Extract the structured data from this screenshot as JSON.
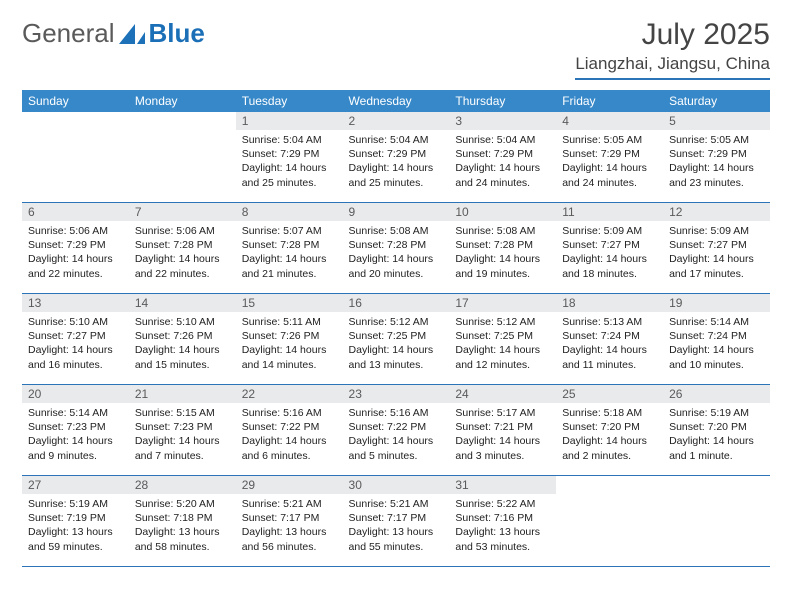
{
  "brand": {
    "general": "General",
    "blue": "Blue"
  },
  "title": "July 2025",
  "location": "Liangzhai, Jiangsu, China",
  "colors": {
    "header_bg": "#3688c9",
    "header_text": "#ffffff",
    "daynum_bg": "#e9eaec",
    "divider": "#2b74b8",
    "logo_gray": "#5a5a5a",
    "logo_blue": "#1b6fb7"
  },
  "typography": {
    "title_fontsize": 30,
    "location_fontsize": 17,
    "dayheader_fontsize": 12,
    "body_fontsize": 10.5
  },
  "day_headers": [
    "Sunday",
    "Monday",
    "Tuesday",
    "Wednesday",
    "Thursday",
    "Friday",
    "Saturday"
  ],
  "weeks": [
    [
      {
        "empty": true
      },
      {
        "empty": true
      },
      {
        "num": "1",
        "sunrise": "Sunrise: 5:04 AM",
        "sunset": "Sunset: 7:29 PM",
        "daylight": "Daylight: 14 hours and 25 minutes."
      },
      {
        "num": "2",
        "sunrise": "Sunrise: 5:04 AM",
        "sunset": "Sunset: 7:29 PM",
        "daylight": "Daylight: 14 hours and 25 minutes."
      },
      {
        "num": "3",
        "sunrise": "Sunrise: 5:04 AM",
        "sunset": "Sunset: 7:29 PM",
        "daylight": "Daylight: 14 hours and 24 minutes."
      },
      {
        "num": "4",
        "sunrise": "Sunrise: 5:05 AM",
        "sunset": "Sunset: 7:29 PM",
        "daylight": "Daylight: 14 hours and 24 minutes."
      },
      {
        "num": "5",
        "sunrise": "Sunrise: 5:05 AM",
        "sunset": "Sunset: 7:29 PM",
        "daylight": "Daylight: 14 hours and 23 minutes."
      }
    ],
    [
      {
        "num": "6",
        "sunrise": "Sunrise: 5:06 AM",
        "sunset": "Sunset: 7:29 PM",
        "daylight": "Daylight: 14 hours and 22 minutes."
      },
      {
        "num": "7",
        "sunrise": "Sunrise: 5:06 AM",
        "sunset": "Sunset: 7:28 PM",
        "daylight": "Daylight: 14 hours and 22 minutes."
      },
      {
        "num": "8",
        "sunrise": "Sunrise: 5:07 AM",
        "sunset": "Sunset: 7:28 PM",
        "daylight": "Daylight: 14 hours and 21 minutes."
      },
      {
        "num": "9",
        "sunrise": "Sunrise: 5:08 AM",
        "sunset": "Sunset: 7:28 PM",
        "daylight": "Daylight: 14 hours and 20 minutes."
      },
      {
        "num": "10",
        "sunrise": "Sunrise: 5:08 AM",
        "sunset": "Sunset: 7:28 PM",
        "daylight": "Daylight: 14 hours and 19 minutes."
      },
      {
        "num": "11",
        "sunrise": "Sunrise: 5:09 AM",
        "sunset": "Sunset: 7:27 PM",
        "daylight": "Daylight: 14 hours and 18 minutes."
      },
      {
        "num": "12",
        "sunrise": "Sunrise: 5:09 AM",
        "sunset": "Sunset: 7:27 PM",
        "daylight": "Daylight: 14 hours and 17 minutes."
      }
    ],
    [
      {
        "num": "13",
        "sunrise": "Sunrise: 5:10 AM",
        "sunset": "Sunset: 7:27 PM",
        "daylight": "Daylight: 14 hours and 16 minutes."
      },
      {
        "num": "14",
        "sunrise": "Sunrise: 5:10 AM",
        "sunset": "Sunset: 7:26 PM",
        "daylight": "Daylight: 14 hours and 15 minutes."
      },
      {
        "num": "15",
        "sunrise": "Sunrise: 5:11 AM",
        "sunset": "Sunset: 7:26 PM",
        "daylight": "Daylight: 14 hours and 14 minutes."
      },
      {
        "num": "16",
        "sunrise": "Sunrise: 5:12 AM",
        "sunset": "Sunset: 7:25 PM",
        "daylight": "Daylight: 14 hours and 13 minutes."
      },
      {
        "num": "17",
        "sunrise": "Sunrise: 5:12 AM",
        "sunset": "Sunset: 7:25 PM",
        "daylight": "Daylight: 14 hours and 12 minutes."
      },
      {
        "num": "18",
        "sunrise": "Sunrise: 5:13 AM",
        "sunset": "Sunset: 7:24 PM",
        "daylight": "Daylight: 14 hours and 11 minutes."
      },
      {
        "num": "19",
        "sunrise": "Sunrise: 5:14 AM",
        "sunset": "Sunset: 7:24 PM",
        "daylight": "Daylight: 14 hours and 10 minutes."
      }
    ],
    [
      {
        "num": "20",
        "sunrise": "Sunrise: 5:14 AM",
        "sunset": "Sunset: 7:23 PM",
        "daylight": "Daylight: 14 hours and 9 minutes."
      },
      {
        "num": "21",
        "sunrise": "Sunrise: 5:15 AM",
        "sunset": "Sunset: 7:23 PM",
        "daylight": "Daylight: 14 hours and 7 minutes."
      },
      {
        "num": "22",
        "sunrise": "Sunrise: 5:16 AM",
        "sunset": "Sunset: 7:22 PM",
        "daylight": "Daylight: 14 hours and 6 minutes."
      },
      {
        "num": "23",
        "sunrise": "Sunrise: 5:16 AM",
        "sunset": "Sunset: 7:22 PM",
        "daylight": "Daylight: 14 hours and 5 minutes."
      },
      {
        "num": "24",
        "sunrise": "Sunrise: 5:17 AM",
        "sunset": "Sunset: 7:21 PM",
        "daylight": "Daylight: 14 hours and 3 minutes."
      },
      {
        "num": "25",
        "sunrise": "Sunrise: 5:18 AM",
        "sunset": "Sunset: 7:20 PM",
        "daylight": "Daylight: 14 hours and 2 minutes."
      },
      {
        "num": "26",
        "sunrise": "Sunrise: 5:19 AM",
        "sunset": "Sunset: 7:20 PM",
        "daylight": "Daylight: 14 hours and 1 minute."
      }
    ],
    [
      {
        "num": "27",
        "sunrise": "Sunrise: 5:19 AM",
        "sunset": "Sunset: 7:19 PM",
        "daylight": "Daylight: 13 hours and 59 minutes."
      },
      {
        "num": "28",
        "sunrise": "Sunrise: 5:20 AM",
        "sunset": "Sunset: 7:18 PM",
        "daylight": "Daylight: 13 hours and 58 minutes."
      },
      {
        "num": "29",
        "sunrise": "Sunrise: 5:21 AM",
        "sunset": "Sunset: 7:17 PM",
        "daylight": "Daylight: 13 hours and 56 minutes."
      },
      {
        "num": "30",
        "sunrise": "Sunrise: 5:21 AM",
        "sunset": "Sunset: 7:17 PM",
        "daylight": "Daylight: 13 hours and 55 minutes."
      },
      {
        "num": "31",
        "sunrise": "Sunrise: 5:22 AM",
        "sunset": "Sunset: 7:16 PM",
        "daylight": "Daylight: 13 hours and 53 minutes."
      },
      {
        "empty": true
      },
      {
        "empty": true
      }
    ]
  ]
}
